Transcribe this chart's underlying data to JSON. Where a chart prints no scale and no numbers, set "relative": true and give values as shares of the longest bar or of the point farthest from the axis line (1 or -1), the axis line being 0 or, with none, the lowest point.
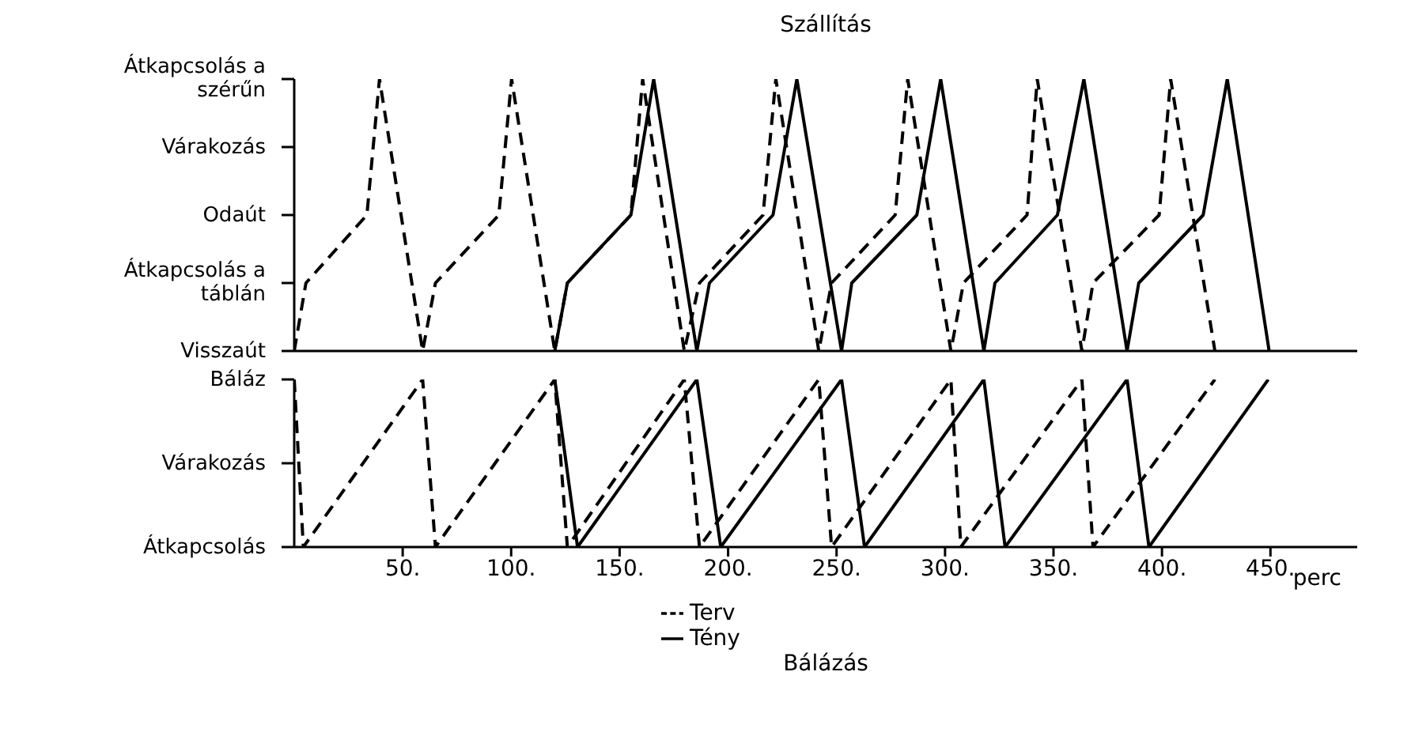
{
  "chart_data": [
    {
      "type": "line",
      "title": "Szállítás",
      "relative": true,
      "xlim": [
        0,
        490
      ],
      "y_categories": [
        "Átkapcsolás a szérűn",
        "Várakozás",
        "Odaút",
        "Átkapcsolás a táblán",
        "Visszaút"
      ],
      "tick_labels": "y",
      "grid": false,
      "marker": "none",
      "series": [
        {
          "color": "#000000",
          "line_style": "dashed",
          "x": [
            0,
            5.4,
            33.5,
            39.3,
            59.2,
            65.1,
            94.3,
            100.2,
            120.1,
            125.9,
            155.2,
            160.6,
            179.8,
            186.8,
            216.1,
            222,
            241.8,
            247.7,
            277,
            282.8,
            302.7,
            308.5,
            337.8,
            342.5,
            363.1,
            368.2,
            398.7,
            404,
            424.4
          ],
          "values": [
            0,
            0.25,
            0.5,
            1,
            0,
            0.25,
            0.5,
            1,
            0,
            0.25,
            0.5,
            1,
            0,
            0.25,
            0.5,
            1,
            0,
            0.25,
            0.5,
            1,
            0,
            0.25,
            0.5,
            1,
            0,
            0.25,
            0.5,
            1,
            0
          ]
        },
        {
          "color": "#000000",
          "line_style": "solid",
          "x": [
            120.1,
            125.9,
            155.2,
            165.7,
            185.6,
            191.4,
            220.7,
            231.7,
            252.3,
            257,
            287,
            298,
            317.9,
            323,
            351.8,
            364,
            383.9,
            389.3,
            419,
            430.1,
            449.4
          ],
          "values": [
            0,
            0.25,
            0.5,
            1,
            0,
            0.25,
            0.5,
            1,
            0,
            0.25,
            0.5,
            1,
            0,
            0.25,
            0.5,
            1,
            0,
            0.25,
            0.5,
            1,
            0
          ]
        }
      ]
    },
    {
      "type": "line",
      "title": "Bálázás",
      "relative": true,
      "xlabel": "perc",
      "xlim": [
        0,
        490
      ],
      "xticks": [
        {
          "value": 50,
          "label": "50."
        },
        {
          "value": 100,
          "label": "100."
        },
        {
          "value": 150,
          "label": "150."
        },
        {
          "value": 200,
          "label": "200."
        },
        {
          "value": 250,
          "label": "250."
        },
        {
          "value": 300,
          "label": "300."
        },
        {
          "value": 350,
          "label": "350."
        },
        {
          "value": 400,
          "label": "400."
        },
        {
          "value": 450,
          "label": "450."
        }
      ],
      "y_categories": [
        "Báláz",
        "Várakozás",
        "Átkapcsolás"
      ],
      "grid": false,
      "marker": "none",
      "legend": "bottom",
      "series": [
        {
          "name": "Terv",
          "color": "#000000",
          "line_style": "dashed",
          "x": [
            0,
            4.2,
            59.2,
            65.1,
            120.1,
            125.9,
            179.8,
            186.8,
            241.8,
            247.7,
            302.7,
            307.3,
            363.1,
            368.2,
            424.4
          ],
          "values": [
            0,
            -1,
            0,
            -1,
            0,
            -1,
            0,
            -1,
            0,
            -1,
            0,
            -1,
            0,
            -1,
            0
          ]
        },
        {
          "name": "Tény",
          "color": "#000000",
          "line_style": "solid",
          "x": [
            120.1,
            130.6,
            185.6,
            196.6,
            252.3,
            262.9,
            317.9,
            327.7,
            383.9,
            394,
            449
          ],
          "values": [
            0,
            -1,
            0,
            -1,
            0,
            -1,
            0,
            -1,
            0,
            -1,
            0
          ]
        }
      ]
    }
  ]
}
